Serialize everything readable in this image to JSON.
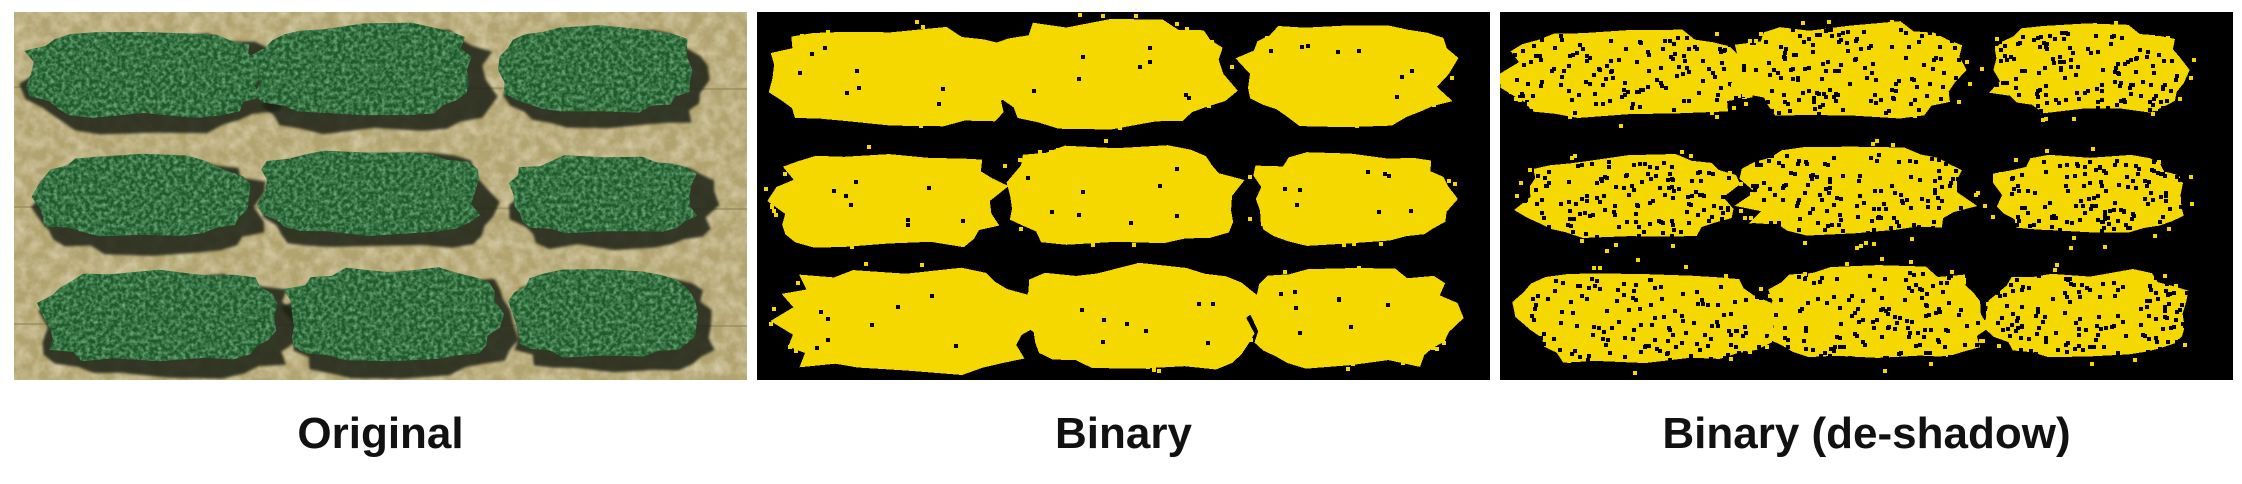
{
  "panels": [
    {
      "caption": "Original",
      "kind": "aerial-photo"
    },
    {
      "caption": "Binary",
      "kind": "binary-mask"
    },
    {
      "caption": "Binary (de-shadow)",
      "kind": "binary-mask-deshadowed"
    }
  ],
  "colors": {
    "soil": "#b2a470",
    "soil_dark": "#8f8656",
    "foliage": "#1f5a2c",
    "foliage_light": "#2f7a3c",
    "shadow": "#1c2418",
    "mask_background": "#000000",
    "mask_foreground": "#f5d800"
  }
}
